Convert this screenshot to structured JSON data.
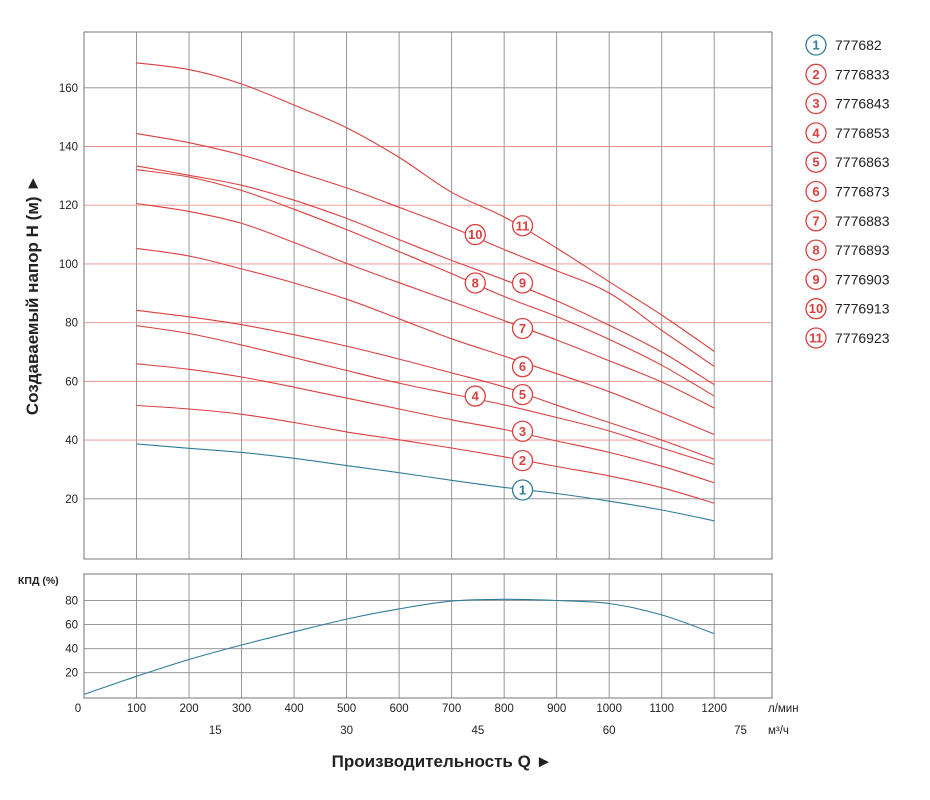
{
  "chart_data": {
    "type": "line",
    "title": "",
    "head_chart": {
      "ylabel": "Создаваемый напор Н (м) ►",
      "y_ticks": [
        20,
        40,
        60,
        80,
        100,
        120,
        140,
        160
      ],
      "ylim": [
        -0.5,
        179
      ],
      "highlight_gridlines": [
        40,
        60,
        80,
        100,
        120,
        140
      ],
      "series": [
        {
          "name": "1",
          "model": "777682",
          "color": "#2e7d9a",
          "marker_q": 835,
          "marker_head": 23,
          "points": [
            [
              100,
              38.7
            ],
            [
              200,
              37.2
            ],
            [
              300,
              35.8
            ],
            [
              400,
              33.8
            ],
            [
              500,
              31.3
            ],
            [
              600,
              28.9
            ],
            [
              700,
              26.3
            ],
            [
              800,
              23.9
            ],
            [
              900,
              21.8
            ],
            [
              1000,
              19.2
            ],
            [
              1100,
              16.2
            ],
            [
              1200,
              12.5
            ]
          ]
        },
        {
          "name": "2",
          "model": "7776833",
          "color": "#d9403f",
          "marker_q": 835,
          "marker_head": 33,
          "points": [
            [
              100,
              51.8
            ],
            [
              200,
              50.6
            ],
            [
              300,
              48.8
            ],
            [
              400,
              46.0
            ],
            [
              500,
              42.8
            ],
            [
              600,
              40.1
            ],
            [
              700,
              37.3
            ],
            [
              800,
              34.3
            ],
            [
              900,
              31.0
            ],
            [
              1000,
              27.8
            ],
            [
              1100,
              23.8
            ],
            [
              1200,
              18.5
            ]
          ]
        },
        {
          "name": "3",
          "model": "7776843",
          "color": "#d9403f",
          "marker_q": 835,
          "marker_head": 43,
          "points": [
            [
              100,
              66.0
            ],
            [
              200,
              64.1
            ],
            [
              300,
              61.5
            ],
            [
              400,
              58.0
            ],
            [
              500,
              54.3
            ],
            [
              600,
              50.6
            ],
            [
              700,
              46.9
            ],
            [
              800,
              43.6
            ],
            [
              900,
              39.7
            ],
            [
              1000,
              35.8
            ],
            [
              1100,
              31.1
            ],
            [
              1200,
              25.5
            ]
          ]
        },
        {
          "name": "4",
          "model": "7776853",
          "color": "#d9403f",
          "marker_q": 745,
          "marker_head": 55,
          "points": [
            [
              100,
              79.0
            ],
            [
              200,
              76.3
            ],
            [
              300,
              72.4
            ],
            [
              400,
              68.1
            ],
            [
              500,
              63.7
            ],
            [
              600,
              59.4
            ],
            [
              700,
              55.7
            ],
            [
              800,
              52.0
            ],
            [
              900,
              47.7
            ],
            [
              1000,
              43.1
            ],
            [
              1100,
              37.3
            ],
            [
              1200,
              31.7
            ]
          ]
        },
        {
          "name": "5",
          "model": "7776863",
          "color": "#d9403f",
          "marker_q": 835,
          "marker_head": 55.5,
          "points": [
            [
              100,
              84.2
            ],
            [
              200,
              82.0
            ],
            [
              300,
              79.3
            ],
            [
              400,
              75.9
            ],
            [
              500,
              72.0
            ],
            [
              600,
              67.6
            ],
            [
              700,
              62.9
            ],
            [
              800,
              58.1
            ],
            [
              900,
              51.9
            ],
            [
              1000,
              46.0
            ],
            [
              1100,
              40.0
            ],
            [
              1200,
              33.5
            ]
          ]
        },
        {
          "name": "6",
          "model": "7776873",
          "color": "#d9403f",
          "marker_q": 835,
          "marker_head": 65,
          "points": [
            [
              100,
              105.3
            ],
            [
              200,
              102.7
            ],
            [
              300,
              98.3
            ],
            [
              400,
              93.5
            ],
            [
              500,
              88.0
            ],
            [
              600,
              81.3
            ],
            [
              700,
              74.5
            ],
            [
              800,
              68.6
            ],
            [
              900,
              62.6
            ],
            [
              1000,
              56.5
            ],
            [
              1100,
              49.3
            ],
            [
              1200,
              41.9
            ]
          ]
        },
        {
          "name": "7",
          "model": "7776883",
          "color": "#d9403f",
          "marker_q": 835,
          "marker_head": 78,
          "points": [
            [
              100,
              120.6
            ],
            [
              200,
              117.9
            ],
            [
              300,
              113.8
            ],
            [
              400,
              107.3
            ],
            [
              500,
              100.2
            ],
            [
              600,
              93.6
            ],
            [
              700,
              87.2
            ],
            [
              800,
              80.7
            ],
            [
              900,
              74.1
            ],
            [
              1000,
              67.0
            ],
            [
              1100,
              59.8
            ],
            [
              1200,
              50.9
            ]
          ]
        },
        {
          "name": "8",
          "model": "7776893",
          "color": "#d9403f",
          "marker_q": 745,
          "marker_head": 93.5,
          "points": [
            [
              100,
              132.1
            ],
            [
              200,
              129.6
            ],
            [
              300,
              125.0
            ],
            [
              400,
              118.6
            ],
            [
              500,
              111.7
            ],
            [
              600,
              104.2
            ],
            [
              700,
              96.7
            ],
            [
              800,
              88.9
            ],
            [
              900,
              82.1
            ],
            [
              1000,
              74.3
            ],
            [
              1100,
              65.5
            ],
            [
              1200,
              55.0
            ]
          ]
        },
        {
          "name": "9",
          "model": "7776903",
          "color": "#d9403f",
          "marker_q": 835,
          "marker_head": 93.5,
          "points": [
            [
              100,
              133.4
            ],
            [
              200,
              130.2
            ],
            [
              300,
              126.8
            ],
            [
              400,
              121.7
            ],
            [
              500,
              115.5
            ],
            [
              600,
              108.3
            ],
            [
              700,
              101.2
            ],
            [
              800,
              94.6
            ],
            [
              900,
              87.4
            ],
            [
              1000,
              79.1
            ],
            [
              1100,
              70.0
            ],
            [
              1200,
              58.9
            ]
          ]
        },
        {
          "name": "10",
          "model": "7776913",
          "color": "#d9403f",
          "marker_q": 745,
          "marker_head": 110,
          "points": [
            [
              100,
              144.4
            ],
            [
              200,
              141.3
            ],
            [
              300,
              137.1
            ],
            [
              400,
              131.6
            ],
            [
              500,
              125.9
            ],
            [
              600,
              119.3
            ],
            [
              700,
              112.5
            ],
            [
              800,
              104.9
            ],
            [
              900,
              97.7
            ],
            [
              1000,
              90.1
            ],
            [
              1100,
              77.4
            ],
            [
              1200,
              65.1
            ]
          ]
        },
        {
          "name": "11",
          "model": "7776923",
          "color": "#d9403f",
          "marker_q": 835,
          "marker_head": 113,
          "points": [
            [
              100,
              168.5
            ],
            [
              200,
              166.2
            ],
            [
              300,
              161.3
            ],
            [
              400,
              154.1
            ],
            [
              500,
              146.4
            ],
            [
              600,
              136.3
            ],
            [
              700,
              124.4
            ],
            [
              800,
              116.0
            ],
            [
              900,
              105.4
            ],
            [
              1000,
              93.9
            ],
            [
              1100,
              82.6
            ],
            [
              1200,
              70.2
            ]
          ]
        }
      ]
    },
    "efficiency_chart": {
      "ylabel": "КПД (%)",
      "y_ticks": [
        20,
        40,
        60,
        80
      ],
      "ylim": [
        -1,
        102
      ],
      "series": [
        {
          "name": "КПД",
          "color": "#2e7d9a",
          "points": [
            [
              0,
              2
            ],
            [
              100,
              17
            ],
            [
              200,
              31
            ],
            [
              300,
              43
            ],
            [
              400,
              54
            ],
            [
              500,
              64.5
            ],
            [
              600,
              73
            ],
            [
              700,
              79.5
            ],
            [
              800,
              81
            ],
            [
              900,
              80
            ],
            [
              1000,
              77.5
            ],
            [
              1100,
              68
            ],
            [
              1200,
              52.5
            ]
          ]
        }
      ]
    },
    "x_axis": {
      "xlim": [
        0,
        1310
      ],
      "lmin_ticks": [
        "0",
        "100",
        "200",
        "300",
        "400",
        "500",
        "600",
        "700",
        "800",
        "900",
        "1000",
        "1100",
        "1200"
      ],
      "lmin_unit": "л/мин",
      "m3h_ticks": [
        "15",
        "30",
        "45",
        "60",
        "75"
      ],
      "m3h_unit": "м³/ч",
      "xlabel": "Производительность Q ►"
    }
  }
}
